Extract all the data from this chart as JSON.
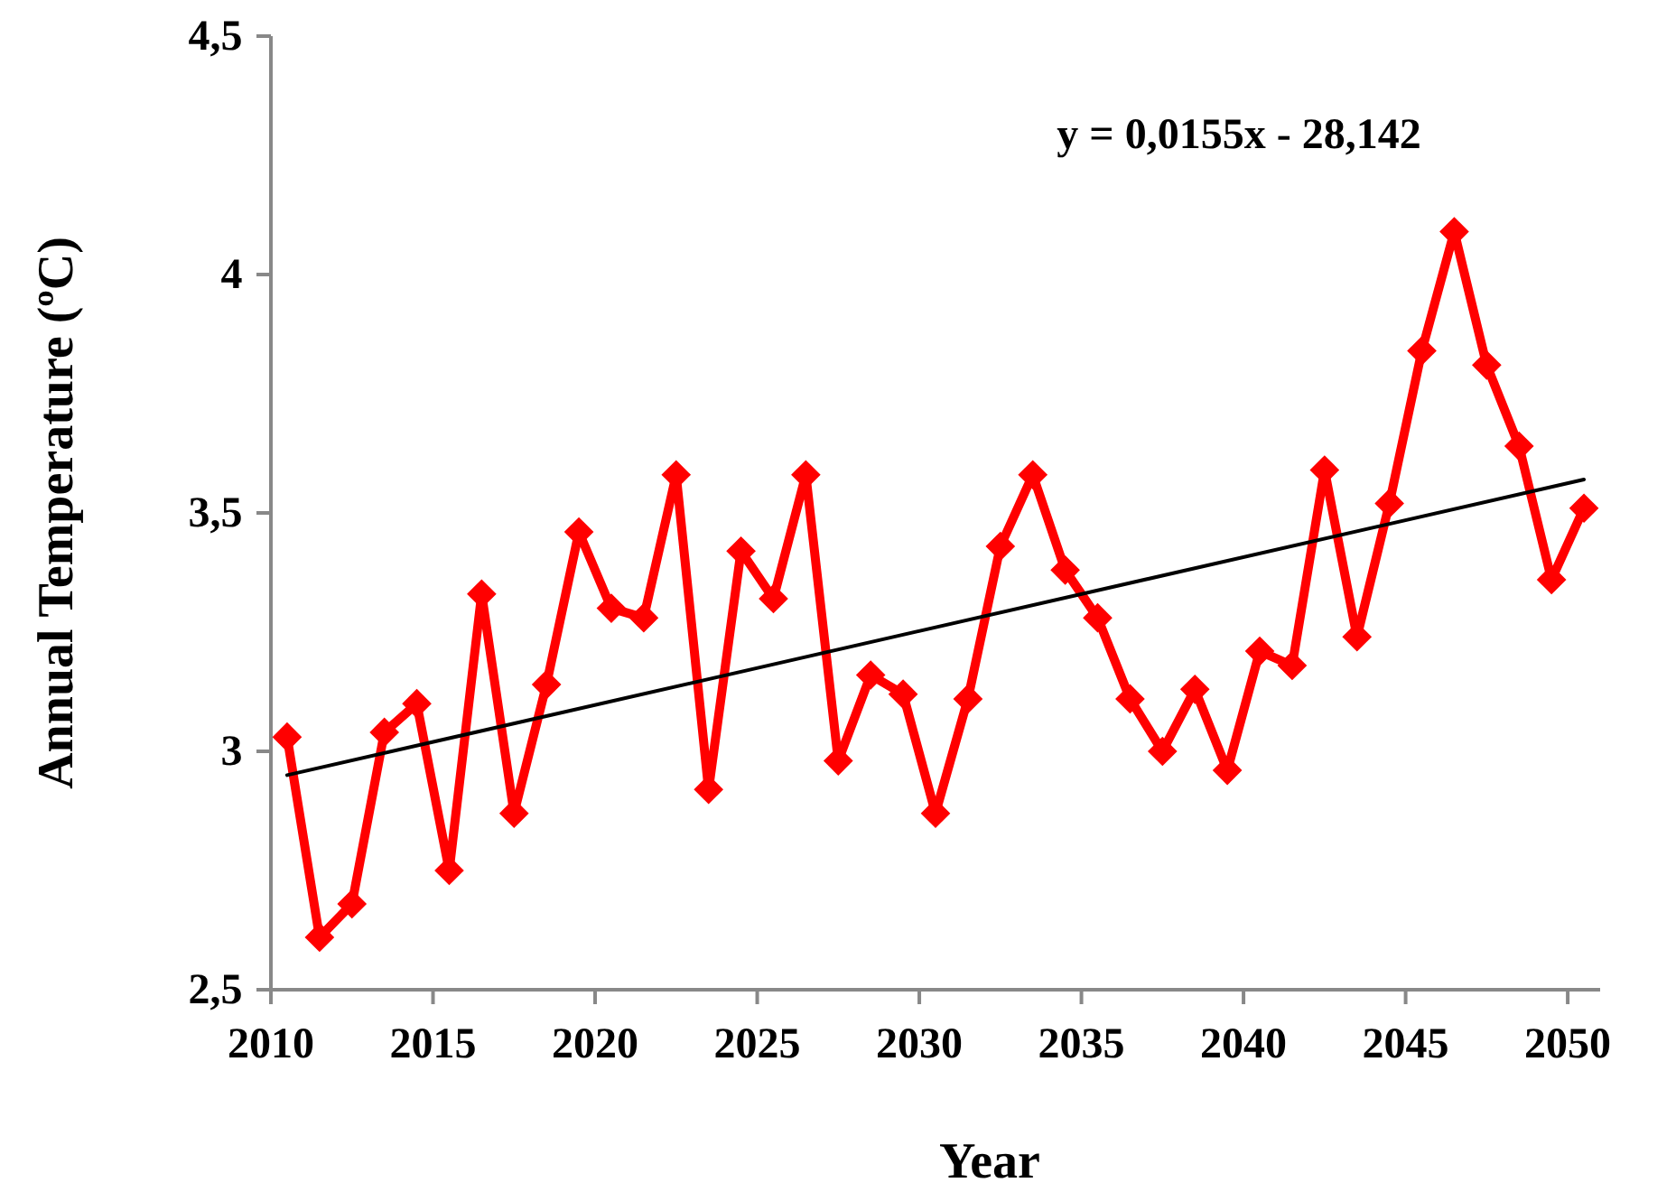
{
  "chart_data": {
    "type": "line",
    "xlabel": "Year",
    "ylabel": "Annual Temperature (ºC)",
    "xlim": [
      2010,
      2051
    ],
    "xticks": [
      2010,
      2015,
      2020,
      2025,
      2030,
      2035,
      2040,
      2045,
      2050
    ],
    "ylim": [
      2.5,
      4.5
    ],
    "yticks": [
      {
        "value": 2.5,
        "label": "2,5"
      },
      {
        "value": 3,
        "label": "3"
      },
      {
        "value": 3.5,
        "label": "3,5"
      },
      {
        "value": 4,
        "label": "4"
      },
      {
        "value": 4.5,
        "label": "4,5"
      }
    ],
    "grid": false,
    "line_style": "solid",
    "annotations": [
      "y = 0,0155x - 28,142"
    ],
    "series": [
      {
        "color": "#ff0000",
        "marker": "diamond",
        "x": [
          2010.5,
          2011.5,
          2012.5,
          2013.5,
          2014.5,
          2015.5,
          2016.5,
          2017.5,
          2018.5,
          2019.5,
          2020.5,
          2021.5,
          2022.5,
          2023.5,
          2024.5,
          2025.5,
          2026.5,
          2027.5,
          2028.5,
          2029.5,
          2030.5,
          2031.5,
          2032.5,
          2033.5,
          2034.5,
          2035.5,
          2036.5,
          2037.5,
          2038.5,
          2039.5,
          2040.5,
          2041.5,
          2042.5,
          2043.5,
          2044.5,
          2045.5,
          2046.5,
          2047.5,
          2048.5,
          2049.5,
          2050.5
        ],
        "values": [
          3.03,
          2.61,
          2.68,
          3.04,
          3.1,
          2.75,
          3.33,
          2.87,
          3.14,
          3.46,
          3.3,
          3.28,
          3.58,
          2.92,
          3.42,
          3.32,
          3.58,
          2.98,
          3.16,
          3.12,
          2.87,
          3.11,
          3.43,
          3.58,
          3.38,
          3.28,
          3.11,
          3.0,
          3.13,
          2.96,
          3.21,
          3.18,
          3.59,
          3.24,
          3.52,
          3.84,
          4.09,
          3.81,
          3.64,
          3.36,
          3.51
        ]
      },
      {
        "type": "line",
        "color": "#000000",
        "marker": "none",
        "x": [
          2010.5,
          2050.5
        ],
        "values": [
          2.95,
          3.57
        ]
      }
    ]
  }
}
